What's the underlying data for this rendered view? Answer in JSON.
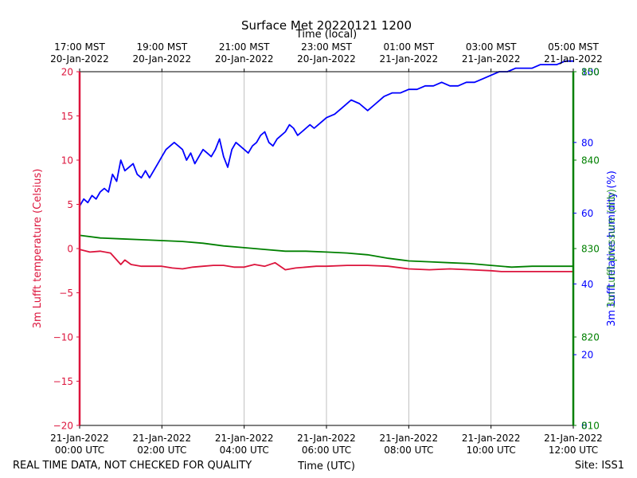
{
  "chart_data": {
    "type": "line",
    "title": "Surface Met 20220121 1200",
    "top_axis": {
      "label": "Time (local)",
      "ticks": [
        [
          "17:00 MST",
          "20-Jan-2022"
        ],
        [
          "19:00 MST",
          "20-Jan-2022"
        ],
        [
          "21:00 MST",
          "20-Jan-2022"
        ],
        [
          "23:00 MST",
          "20-Jan-2022"
        ],
        [
          "01:00 MST",
          "21-Jan-2022"
        ],
        [
          "03:00 MST",
          "21-Jan-2022"
        ],
        [
          "05:00 MST",
          "21-Jan-2022"
        ]
      ]
    },
    "x_axis": {
      "label": "Time (UTC)",
      "units": "hours (UTC)",
      "range": [
        0,
        12
      ],
      "grid": true,
      "ticks": [
        {
          "value": 0,
          "date": "21-Jan-2022",
          "time": "00:00 UTC"
        },
        {
          "value": 2,
          "date": "21-Jan-2022",
          "time": "02:00 UTC"
        },
        {
          "value": 4,
          "date": "21-Jan-2022",
          "time": "04:00 UTC"
        },
        {
          "value": 6,
          "date": "21-Jan-2022",
          "time": "06:00 UTC"
        },
        {
          "value": 8,
          "date": "21-Jan-2022",
          "time": "08:00 UTC"
        },
        {
          "value": 10,
          "date": "21-Jan-2022",
          "time": "10:00 UTC"
        },
        {
          "value": 12,
          "date": "21-Jan-2022",
          "time": "12:00 UTC"
        }
      ]
    },
    "y_left": {
      "label": "3m Lufft temperature (Celsius)",
      "range": [
        -20,
        20
      ],
      "ticks": [
        "20",
        "15",
        "10",
        "5",
        "0",
        "−5",
        "−10",
        "−15",
        "−20"
      ],
      "color": "#dc143c"
    },
    "y_right_outer": {
      "label": "3m Lufft relative humidity (%)",
      "range": [
        0,
        100
      ],
      "ticks": [
        "100",
        "80",
        "60",
        "40",
        "20",
        "0"
      ],
      "color": "#0000ff"
    },
    "y_right_inner": {
      "label": "3m Lufft pressure (mb)",
      "range": [
        810,
        850
      ],
      "ticks": [
        "850",
        "840",
        "830",
        "820",
        "810"
      ],
      "color": "#008000"
    },
    "series": [
      {
        "axis": "left",
        "color": "#dc143c",
        "x": [
          0,
          0.25,
          0.5,
          0.75,
          1.0,
          1.1,
          1.25,
          1.5,
          1.75,
          2.0,
          2.25,
          2.5,
          2.75,
          3.0,
          3.25,
          3.5,
          3.75,
          4.0,
          4.25,
          4.5,
          4.75,
          5.0,
          5.25,
          5.5,
          5.75,
          6.0,
          6.5,
          7.0,
          7.5,
          8.0,
          8.5,
          9.0,
          9.5,
          10.0,
          10.25,
          10.5,
          11.0,
          11.5,
          12.0
        ],
        "values": [
          -0.1,
          -0.4,
          -0.3,
          -0.5,
          -1.8,
          -1.3,
          -1.8,
          -2.0,
          -2.0,
          -2.0,
          -2.2,
          -2.3,
          -2.1,
          -2.0,
          -1.9,
          -1.9,
          -2.1,
          -2.1,
          -1.8,
          -2.0,
          -1.6,
          -2.4,
          -2.2,
          -2.1,
          -2.0,
          -2.0,
          -1.9,
          -1.9,
          -2.0,
          -2.3,
          -2.4,
          -2.3,
          -2.4,
          -2.5,
          -2.6,
          -2.6,
          -2.6,
          -2.6,
          -2.6
        ]
      },
      {
        "axis": "right_outer",
        "color": "#0000ff",
        "x": [
          0,
          0.1,
          0.2,
          0.3,
          0.4,
          0.5,
          0.6,
          0.7,
          0.8,
          0.9,
          1.0,
          1.1,
          1.2,
          1.3,
          1.4,
          1.5,
          1.6,
          1.7,
          1.8,
          1.9,
          2.0,
          2.1,
          2.2,
          2.3,
          2.4,
          2.5,
          2.6,
          2.7,
          2.8,
          2.9,
          3.0,
          3.1,
          3.2,
          3.3,
          3.4,
          3.5,
          3.6,
          3.7,
          3.8,
          3.9,
          4.0,
          4.1,
          4.2,
          4.3,
          4.4,
          4.5,
          4.6,
          4.7,
          4.8,
          4.9,
          5.0,
          5.1,
          5.2,
          5.3,
          5.4,
          5.5,
          5.6,
          5.7,
          5.8,
          5.9,
          6.0,
          6.2,
          6.4,
          6.6,
          6.8,
          7.0,
          7.2,
          7.4,
          7.6,
          7.8,
          8.0,
          8.2,
          8.4,
          8.6,
          8.8,
          9.0,
          9.2,
          9.4,
          9.6,
          9.8,
          10.0,
          10.2,
          10.4,
          10.6,
          10.8,
          11.0,
          11.2,
          11.4,
          11.6,
          11.8,
          12.0
        ],
        "values": [
          62,
          64,
          63,
          65,
          64,
          66,
          67,
          66,
          71,
          69,
          75,
          72,
          73,
          74,
          71,
          70,
          72,
          70,
          72,
          74,
          76,
          78,
          79,
          80,
          79,
          78,
          75,
          77,
          74,
          76,
          78,
          77,
          76,
          78,
          81,
          76,
          73,
          78,
          80,
          79,
          78,
          77,
          79,
          80,
          82,
          83,
          80,
          79,
          81,
          82,
          83,
          85,
          84,
          82,
          83,
          84,
          85,
          84,
          85,
          86,
          87,
          88,
          90,
          92,
          91,
          89,
          91,
          93,
          94,
          94,
          95,
          95,
          96,
          96,
          97,
          96,
          96,
          97,
          97,
          98,
          99,
          100,
          100,
          101,
          101,
          101,
          102,
          102,
          102,
          103,
          103
        ]
      },
      {
        "axis": "right_inner",
        "color": "#008000",
        "x": [
          0,
          0.5,
          1.0,
          1.5,
          2.0,
          2.5,
          3.0,
          3.5,
          4.0,
          4.5,
          5.0,
          5.5,
          6.0,
          6.5,
          7.0,
          7.5,
          8.0,
          8.5,
          9.0,
          9.5,
          10.0,
          10.5,
          11.0,
          11.5,
          12.0
        ],
        "values": [
          831.5,
          831.2,
          831.1,
          831.0,
          830.9,
          830.8,
          830.6,
          830.3,
          830.1,
          829.9,
          829.7,
          829.7,
          829.6,
          829.5,
          829.3,
          828.9,
          828.6,
          828.5,
          828.4,
          828.3,
          828.1,
          827.9,
          828.0,
          828.0,
          828.0
        ]
      }
    ]
  },
  "footer": {
    "note": "REAL TIME DATA, NOT CHECKED FOR QUALITY",
    "site": "Site: ISS1"
  }
}
